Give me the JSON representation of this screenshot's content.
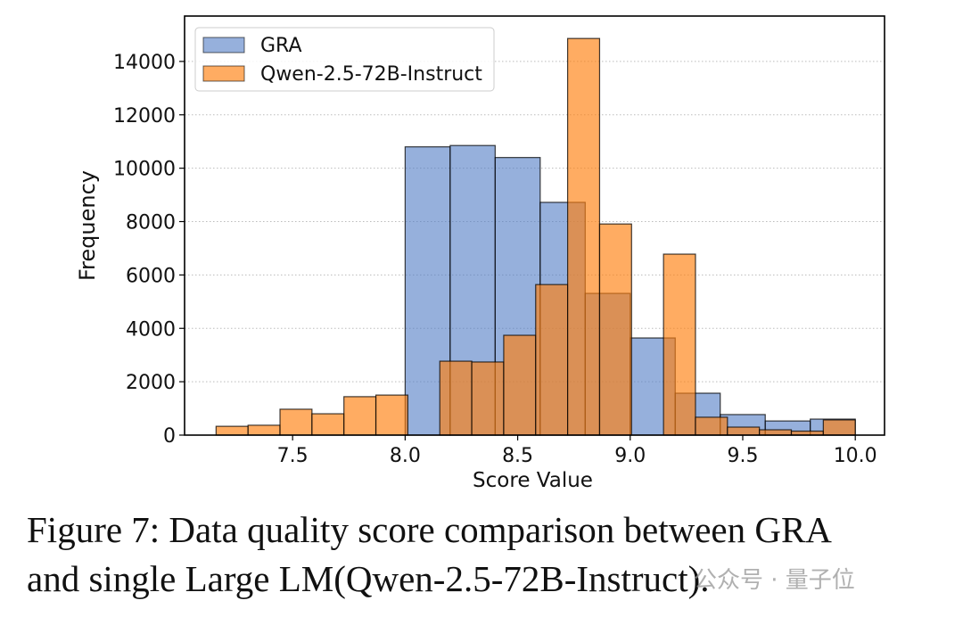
{
  "chart_data": {
    "type": "bar",
    "subtype": "overlapping-histogram",
    "title": "",
    "xlabel": "Score Value",
    "ylabel": "Frequency",
    "xlim": [
      7.02,
      10.13
    ],
    "ylim": [
      0,
      15700
    ],
    "xticks": [
      7.5,
      8.0,
      8.5,
      9.0,
      9.5,
      10.0
    ],
    "xtick_labels": [
      "7.5",
      "8.0",
      "8.5",
      "9.0",
      "9.5",
      "10.0"
    ],
    "yticks": [
      0,
      2000,
      4000,
      6000,
      8000,
      10000,
      12000,
      14000
    ],
    "ytick_labels": [
      "0",
      "2000",
      "4000",
      "6000",
      "8000",
      "10000",
      "12000",
      "14000"
    ],
    "grid": "horizontal dotted",
    "legend_placement": "top-left",
    "series": [
      {
        "name": "GRA",
        "color": "#8fabda",
        "bin_start": 8.0,
        "bin_width": 0.2,
        "values": [
          10800,
          10850,
          10400,
          8720,
          5310,
          3640,
          1570,
          770,
          530,
          600
        ]
      },
      {
        "name": "Qwen-2.5-72B-Instruct",
        "color": "#ff8c3a",
        "bin_start": 7.16,
        "bin_width": 0.142,
        "values": [
          330,
          370,
          970,
          800,
          1440,
          1500,
          0,
          2770,
          2740,
          3740,
          5640,
          14860,
          7910,
          0,
          6780,
          670,
          300,
          200,
          150,
          570
        ]
      }
    ]
  },
  "caption": {
    "line1": "Figure 7: Data quality score comparison between GRA",
    "line2": "and single Large LM(Qwen-2.5-72B-Instruct)."
  },
  "watermark": "公众号 · 量子位"
}
